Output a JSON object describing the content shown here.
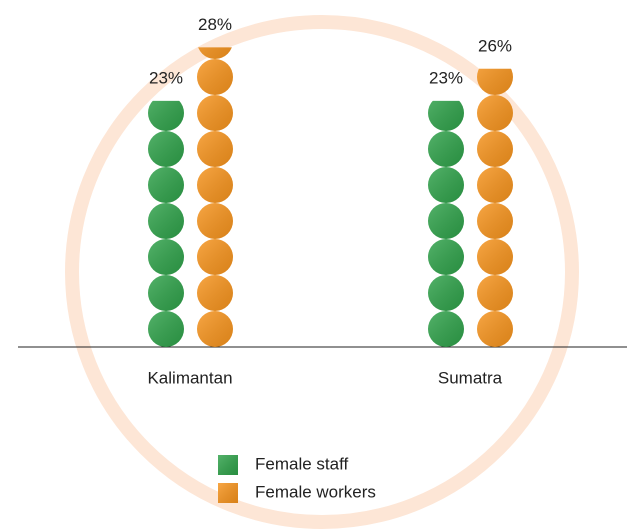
{
  "chart_data": {
    "type": "pictograph",
    "categories": [
      "Kalimantan",
      "Sumatra"
    ],
    "series": [
      {
        "name": "Female staff",
        "color": "#2fa24a",
        "values": [
          23,
          23
        ],
        "value_labels": [
          "23%",
          "23%"
        ]
      },
      {
        "name": "Female workers",
        "color": "#f7941d",
        "values": [
          28,
          26
        ],
        "value_labels": [
          "28%",
          "26%"
        ]
      }
    ]
  }
}
